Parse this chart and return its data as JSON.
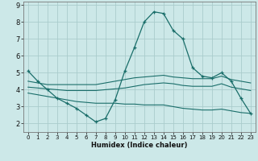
{
  "xlabel": "Humidex (Indice chaleur)",
  "bg_color": "#cce8e8",
  "grid_color": "#aacccc",
  "line_color": "#1a6e6a",
  "xlim": [
    -0.5,
    23.5
  ],
  "ylim": [
    1.5,
    9.2
  ],
  "xticks": [
    0,
    1,
    2,
    3,
    4,
    5,
    6,
    7,
    8,
    9,
    10,
    11,
    12,
    13,
    14,
    15,
    16,
    17,
    18,
    19,
    20,
    21,
    22,
    23
  ],
  "yticks": [
    2,
    3,
    4,
    5,
    6,
    7,
    8,
    9
  ],
  "line1_x": [
    0,
    1,
    2,
    3,
    4,
    5,
    6,
    7,
    8,
    9,
    10,
    11,
    12,
    13,
    14,
    15,
    16,
    17,
    18,
    19,
    20,
    21,
    22,
    23
  ],
  "line1_y": [
    5.1,
    4.5,
    4.0,
    3.5,
    3.2,
    2.9,
    2.5,
    2.1,
    2.3,
    3.4,
    5.1,
    6.5,
    8.0,
    8.6,
    8.5,
    7.5,
    7.0,
    5.3,
    4.8,
    4.7,
    5.0,
    4.5,
    3.5,
    2.6
  ],
  "line2_x": [
    0,
    1,
    2,
    3,
    4,
    5,
    6,
    7,
    8,
    9,
    10,
    11,
    12,
    13,
    14,
    15,
    16,
    17,
    18,
    19,
    20,
    21,
    22,
    23
  ],
  "line2_y": [
    4.5,
    4.4,
    4.3,
    4.3,
    4.3,
    4.3,
    4.3,
    4.3,
    4.4,
    4.5,
    4.6,
    4.7,
    4.75,
    4.8,
    4.85,
    4.75,
    4.7,
    4.65,
    4.65,
    4.65,
    4.8,
    4.6,
    4.5,
    4.4
  ],
  "line3_x": [
    0,
    1,
    2,
    3,
    4,
    5,
    6,
    7,
    8,
    9,
    10,
    11,
    12,
    13,
    14,
    15,
    16,
    17,
    18,
    19,
    20,
    21,
    22,
    23
  ],
  "line3_y": [
    4.15,
    4.1,
    4.05,
    4.0,
    3.95,
    3.95,
    3.95,
    3.95,
    4.0,
    4.05,
    4.1,
    4.2,
    4.3,
    4.35,
    4.4,
    4.35,
    4.25,
    4.2,
    4.2,
    4.2,
    4.35,
    4.15,
    4.05,
    3.95
  ],
  "line4_x": [
    0,
    1,
    2,
    3,
    4,
    5,
    6,
    7,
    8,
    9,
    10,
    11,
    12,
    13,
    14,
    15,
    16,
    17,
    18,
    19,
    20,
    21,
    22,
    23
  ],
  "line4_y": [
    3.8,
    3.7,
    3.6,
    3.5,
    3.4,
    3.3,
    3.25,
    3.2,
    3.2,
    3.2,
    3.15,
    3.15,
    3.1,
    3.1,
    3.1,
    3.0,
    2.9,
    2.85,
    2.8,
    2.8,
    2.85,
    2.75,
    2.65,
    2.6
  ]
}
